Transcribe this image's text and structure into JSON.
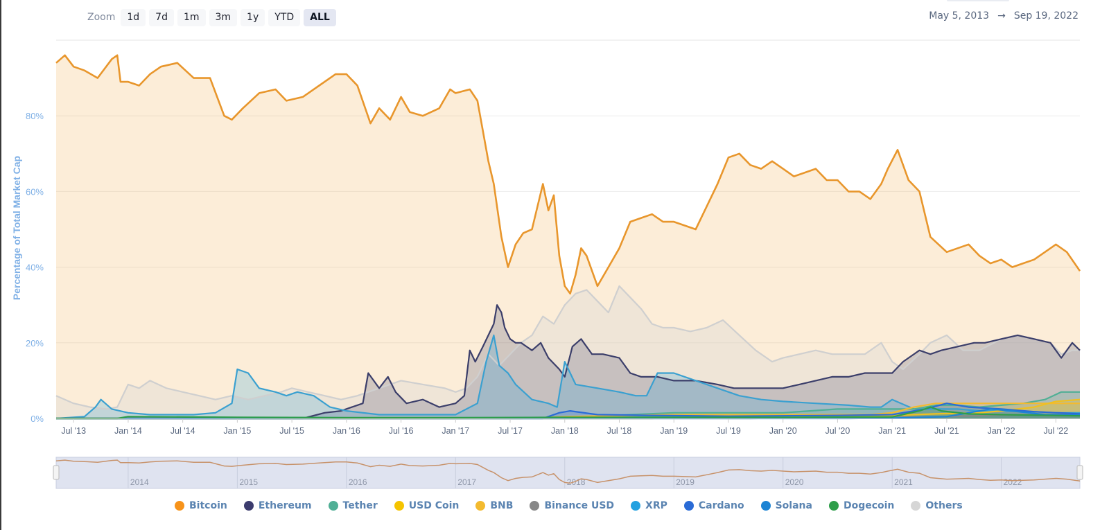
{
  "zoom": {
    "label": "Zoom",
    "buttons": [
      "1d",
      "7d",
      "1m",
      "3m",
      "1y",
      "YTD",
      "ALL"
    ],
    "active": "ALL"
  },
  "range": {
    "from": "May 5, 2013",
    "arrow": "→",
    "to": "Sep 19, 2022"
  },
  "chart_data": {
    "type": "area",
    "title": "",
    "ylabel": "Percentage of Total Market Cap",
    "xlabel": "",
    "ylim": [
      0,
      100
    ],
    "xlim": [
      2013.34,
      2022.72
    ],
    "y_ticks": [
      0,
      20,
      40,
      60,
      80
    ],
    "y_tick_labels": [
      "0%",
      "20%",
      "40%",
      "60%",
      "80%"
    ],
    "x_ticks": [
      2013.5,
      2014.0,
      2014.5,
      2015.0,
      2015.5,
      2016.0,
      2016.5,
      2017.0,
      2017.5,
      2018.0,
      2018.5,
      2019.0,
      2019.5,
      2020.0,
      2020.5,
      2021.0,
      2021.5,
      2022.0,
      2022.5
    ],
    "x_tick_labels": [
      "Jul '13",
      "Jan '14",
      "Jul '14",
      "Jan '15",
      "Jul '15",
      "Jan '16",
      "Jul '16",
      "Jan '17",
      "Jul '17",
      "Jan '18",
      "Jul '18",
      "Jan '19",
      "Jul '19",
      "Jan '20",
      "Jul '20",
      "Jan '21",
      "Jul '21",
      "Jan '22",
      "Jul '22"
    ],
    "grid": true,
    "navigator": {
      "labels": [
        "2014",
        "2015",
        "2016",
        "2017",
        "2018",
        "2019",
        "2020",
        "2021",
        "2022"
      ],
      "ticks": [
        2014,
        2015,
        2016,
        2017,
        2018,
        2019,
        2020,
        2021,
        2022
      ]
    },
    "series": [
      {
        "name": "Bitcoin",
        "color": "#f2a33a",
        "line": "#e8962c",
        "x": [
          2013.34,
          2013.42,
          2013.5,
          2013.6,
          2013.72,
          2013.85,
          2013.9,
          2013.93,
          2014.0,
          2014.1,
          2014.2,
          2014.3,
          2014.45,
          2014.6,
          2014.75,
          2014.88,
          2014.95,
          2015.05,
          2015.2,
          2015.35,
          2015.45,
          2015.6,
          2015.75,
          2015.9,
          2016.0,
          2016.1,
          2016.22,
          2016.3,
          2016.4,
          2016.5,
          2016.58,
          2016.7,
          2016.85,
          2016.95,
          2017.0,
          2017.13,
          2017.2,
          2017.25,
          2017.3,
          2017.35,
          2017.42,
          2017.48,
          2017.55,
          2017.62,
          2017.7,
          2017.8,
          2017.85,
          2017.9,
          2017.95,
          2018.0,
          2018.05,
          2018.1,
          2018.15,
          2018.2,
          2018.3,
          2018.4,
          2018.5,
          2018.6,
          2018.7,
          2018.8,
          2018.9,
          2019.0,
          2019.2,
          2019.3,
          2019.4,
          2019.5,
          2019.6,
          2019.7,
          2019.8,
          2019.9,
          2020.0,
          2020.1,
          2020.2,
          2020.3,
          2020.4,
          2020.5,
          2020.6,
          2020.7,
          2020.8,
          2020.9,
          2020.96,
          2021.05,
          2021.15,
          2021.25,
          2021.35,
          2021.5,
          2021.6,
          2021.7,
          2021.8,
          2021.9,
          2022.0,
          2022.1,
          2022.2,
          2022.3,
          2022.4,
          2022.5,
          2022.6,
          2022.72
        ],
        "values": [
          94,
          96,
          93,
          92,
          90,
          95,
          96,
          89,
          89,
          88,
          91,
          93,
          94,
          90,
          90,
          80,
          79,
          82,
          86,
          87,
          84,
          85,
          88,
          91,
          91,
          88,
          78,
          82,
          79,
          85,
          81,
          80,
          82,
          87,
          86,
          87,
          84,
          76,
          68,
          62,
          48,
          40,
          46,
          49,
          50,
          62,
          55,
          59,
          43,
          35,
          33,
          38,
          45,
          43,
          35,
          40,
          45,
          52,
          53,
          54,
          52,
          52,
          50,
          56,
          62,
          69,
          70,
          67,
          66,
          68,
          66,
          64,
          65,
          66,
          63,
          63,
          60,
          60,
          58,
          62,
          66,
          71,
          63,
          60,
          48,
          44,
          45,
          46,
          43,
          41,
          42,
          40,
          41,
          42,
          44,
          46,
          44,
          39
        ]
      },
      {
        "name": "Ethereum",
        "color": "#3c3f6e",
        "line": "#3b3e6a",
        "x": [
          2013.34,
          2015.6,
          2015.8,
          2015.95,
          2016.05,
          2016.15,
          2016.2,
          2016.3,
          2016.38,
          2016.45,
          2016.55,
          2016.7,
          2016.85,
          2017.0,
          2017.08,
          2017.13,
          2017.18,
          2017.25,
          2017.35,
          2017.38,
          2017.42,
          2017.45,
          2017.5,
          2017.55,
          2017.6,
          2017.7,
          2017.78,
          2017.85,
          2017.95,
          2018.0,
          2018.07,
          2018.15,
          2018.25,
          2018.35,
          2018.5,
          2018.6,
          2018.7,
          2018.85,
          2019.0,
          2019.2,
          2019.4,
          2019.55,
          2019.7,
          2019.85,
          2020.0,
          2020.15,
          2020.3,
          2020.45,
          2020.6,
          2020.75,
          2020.9,
          2021.0,
          2021.1,
          2021.25,
          2021.35,
          2021.45,
          2021.6,
          2021.75,
          2021.85,
          2022.0,
          2022.15,
          2022.3,
          2022.45,
          2022.55,
          2022.65,
          2022.72
        ],
        "values": [
          0,
          0,
          1.5,
          2,
          3,
          4,
          12,
          8,
          11,
          7,
          4,
          5,
          3,
          4,
          6,
          18,
          15,
          19,
          25,
          30,
          28,
          24,
          21,
          20,
          20,
          18,
          20,
          16,
          13,
          11,
          19,
          21,
          17,
          17,
          16,
          12,
          11,
          11,
          10,
          10,
          9,
          8,
          8,
          8,
          8,
          9,
          10,
          11,
          11,
          12,
          12,
          12,
          15,
          18,
          17,
          18,
          19,
          20,
          20,
          21,
          22,
          21,
          20,
          16,
          20,
          18
        ]
      },
      {
        "name": "Tether",
        "color": "#50af95",
        "line": "#50af95",
        "x": [
          2013.34,
          2017.0,
          2018.0,
          2019.0,
          2020.0,
          2020.5,
          2021.0,
          2021.2,
          2021.4,
          2021.6,
          2021.8,
          2022.0,
          2022.2,
          2022.4,
          2022.55,
          2022.72
        ],
        "values": [
          0,
          0,
          0.3,
          1.5,
          1.5,
          2.5,
          2.5,
          2.5,
          3.5,
          3.5,
          3,
          3.5,
          4,
          5,
          7,
          7
        ]
      },
      {
        "name": "USD Coin",
        "color": "#f5c400",
        "line": "#f0c020",
        "x": [
          2013.34,
          2018.8,
          2019.0,
          2020.0,
          2020.5,
          2021.0,
          2021.4,
          2021.8,
          2022.0,
          2022.3,
          2022.5,
          2022.72
        ],
        "values": [
          0,
          0,
          0.2,
          0.3,
          0.5,
          0.8,
          1.2,
          1.5,
          2,
          3,
          4.5,
          5
        ]
      },
      {
        "name": "BNB",
        "color": "#f3ba2f",
        "line": "#f3ba2f",
        "x": [
          2013.34,
          2017.6,
          2018.0,
          2019.0,
          2020.0,
          2020.8,
          2021.0,
          2021.2,
          2021.4,
          2021.8,
          2022.0,
          2022.3,
          2022.5,
          2022.72
        ],
        "values": [
          0,
          0,
          0.5,
          1,
          1,
          1,
          1.5,
          3,
          4,
          4,
          4,
          4,
          4,
          4
        ]
      },
      {
        "name": "Binance USD",
        "color": "#878787",
        "line": "#878787",
        "x": [
          2013.34,
          2019.7,
          2020.0,
          2021.0,
          2021.5,
          2022.0,
          2022.5,
          2022.72
        ],
        "values": [
          0,
          0,
          0.1,
          0.3,
          0.5,
          0.9,
          1,
          1
        ]
      },
      {
        "name": "XRP",
        "color": "#23a1e0",
        "line": "#3aa0d0",
        "x": [
          2013.34,
          2013.6,
          2013.7,
          2013.75,
          2013.85,
          2014.0,
          2014.2,
          2014.4,
          2014.6,
          2014.8,
          2014.95,
          2015.0,
          2015.1,
          2015.2,
          2015.35,
          2015.45,
          2015.55,
          2015.7,
          2015.85,
          2016.0,
          2016.3,
          2016.5,
          2016.7,
          2017.0,
          2017.2,
          2017.28,
          2017.35,
          2017.4,
          2017.48,
          2017.55,
          2017.7,
          2017.85,
          2017.93,
          2018.0,
          2018.1,
          2018.3,
          2018.5,
          2018.65,
          2018.75,
          2018.85,
          2019.0,
          2019.2,
          2019.4,
          2019.6,
          2019.8,
          2020.0,
          2020.3,
          2020.6,
          2020.8,
          2020.9,
          2021.0,
          2021.2,
          2021.4,
          2021.6,
          2021.8,
          2022.0,
          2022.3,
          2022.5,
          2022.72
        ],
        "values": [
          0,
          0.5,
          3,
          5,
          2.5,
          1.5,
          1,
          1,
          1,
          1.5,
          4,
          13,
          12,
          8,
          7,
          6,
          7,
          6,
          3,
          2,
          1,
          1,
          1,
          1,
          4,
          15,
          22,
          14,
          12,
          9,
          5,
          4,
          3,
          15,
          9,
          8,
          7,
          6,
          6,
          12,
          12,
          10,
          8,
          6,
          5,
          4.5,
          4,
          3.5,
          3,
          3,
          5,
          2.5,
          2.5,
          2.5,
          2,
          2,
          1.8,
          1.5,
          1.5
        ]
      },
      {
        "name": "Cardano",
        "color": "#2a6bd6",
        "line": "#2a6bd6",
        "x": [
          2013.34,
          2017.8,
          2017.95,
          2018.05,
          2018.3,
          2018.8,
          2019.5,
          2020.5,
          2021.0,
          2021.3,
          2021.5,
          2021.7,
          2022.0,
          2022.3,
          2022.72
        ],
        "values": [
          0,
          0,
          1.5,
          2,
          1,
          0.8,
          0.6,
          0.8,
          1,
          2.5,
          4,
          3,
          2.5,
          1.8,
          1.2
        ]
      },
      {
        "name": "Solana",
        "color": "#1d84d4",
        "line": "#1d84d4",
        "x": [
          2013.34,
          2020.6,
          2021.0,
          2021.5,
          2021.7,
          2021.9,
          2022.1,
          2022.4,
          2022.72
        ],
        "values": [
          0,
          0,
          0.1,
          0.5,
          1.5,
          2.5,
          2,
          1,
          0.9
        ]
      },
      {
        "name": "Dogecoin",
        "color": "#2e9e4a",
        "line": "#2e9e4a",
        "x": [
          2013.34,
          2013.9,
          2014.0,
          2015.0,
          2016.0,
          2017.0,
          2018.0,
          2019.0,
          2020.0,
          2021.0,
          2021.25,
          2021.35,
          2021.45,
          2021.7,
          2022.0,
          2022.72
        ],
        "values": [
          0,
          0,
          0.5,
          0.3,
          0.2,
          0.2,
          0.3,
          0.3,
          0.3,
          0.4,
          2,
          3,
          2,
          1.2,
          1,
          0.7
        ]
      },
      {
        "name": "Others",
        "color": "#d8d8d8",
        "line": "#cfcfcf",
        "x": [
          2013.34,
          2013.5,
          2013.65,
          2013.8,
          2013.9,
          2014.0,
          2014.1,
          2014.2,
          2014.35,
          2014.5,
          2014.65,
          2014.8,
          2014.95,
          2015.1,
          2015.25,
          2015.4,
          2015.5,
          2015.65,
          2015.8,
          2015.95,
          2016.1,
          2016.3,
          2016.5,
          2016.7,
          2016.9,
          2017.0,
          2017.1,
          2017.2,
          2017.3,
          2017.4,
          2017.5,
          2017.6,
          2017.7,
          2017.8,
          2017.9,
          2018.0,
          2018.1,
          2018.2,
          2018.3,
          2018.4,
          2018.5,
          2018.6,
          2018.7,
          2018.8,
          2018.9,
          2019.0,
          2019.15,
          2019.3,
          2019.45,
          2019.6,
          2019.75,
          2019.9,
          2020.0,
          2020.15,
          2020.3,
          2020.45,
          2020.6,
          2020.75,
          2020.9,
          2021.0,
          2021.1,
          2021.25,
          2021.35,
          2021.5,
          2021.65,
          2021.8,
          2022.0,
          2022.15,
          2022.3,
          2022.45,
          2022.55,
          2022.65,
          2022.72
        ],
        "values": [
          6,
          4,
          3,
          2.5,
          3,
          9,
          8,
          10,
          8,
          7,
          6,
          5,
          6,
          5,
          6,
          7,
          8,
          7,
          6,
          5,
          6,
          8,
          10,
          9,
          8,
          7,
          8,
          11,
          17,
          14,
          17,
          20,
          22,
          27,
          25,
          30,
          33,
          34,
          31,
          28,
          35,
          32,
          29,
          25,
          24,
          24,
          23,
          24,
          26,
          22,
          18,
          15,
          16,
          17,
          18,
          17,
          17,
          17,
          20,
          15,
          13,
          17,
          20,
          22,
          18,
          18,
          21,
          22,
          21,
          20,
          17,
          18,
          18
        ]
      }
    ]
  }
}
